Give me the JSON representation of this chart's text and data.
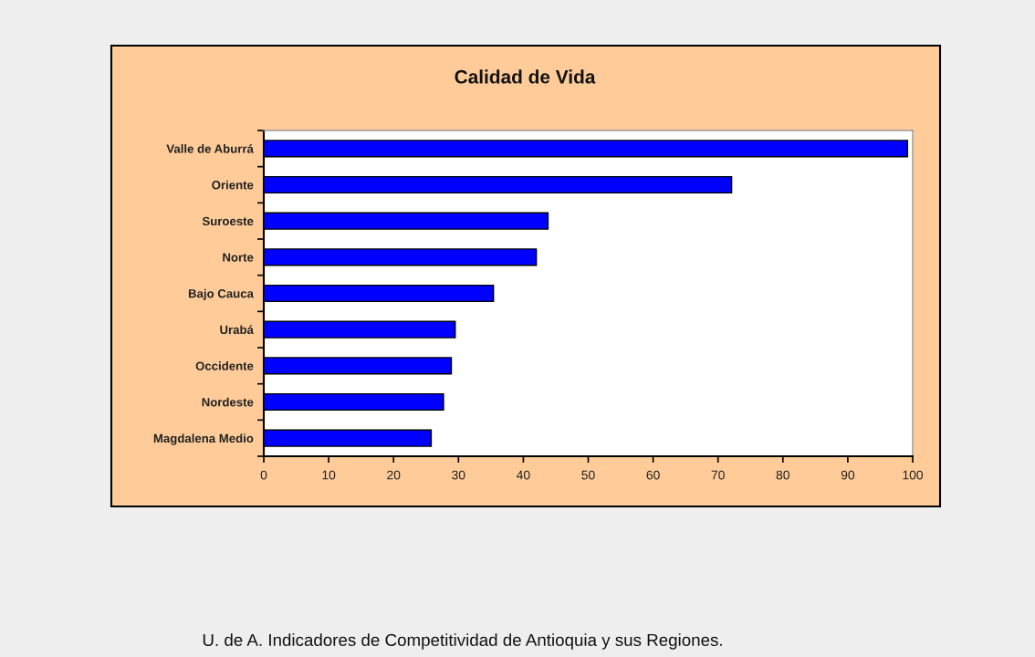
{
  "chart_data": {
    "type": "bar",
    "orientation": "horizontal",
    "title": "Calidad de Vida",
    "categories": [
      "Valle de Aburrá",
      "Oriente",
      "Suroeste",
      "Norte",
      "Bajo Cauca",
      "Urabá",
      "Occidente",
      "Nordeste",
      "Magdalena Medio"
    ],
    "values": [
      99.2,
      72.1,
      43.8,
      42.0,
      35.4,
      29.5,
      28.9,
      27.7,
      25.8
    ],
    "color": "#0000ff",
    "xlim": [
      0,
      100
    ],
    "xticks": [
      0,
      10,
      20,
      30,
      40,
      50,
      60,
      70,
      80,
      90,
      100
    ],
    "grid": false,
    "legend": false,
    "annotations": [
      "U. de A. Indicadores de Competitividad de Antioquia y sus Regiones."
    ]
  }
}
